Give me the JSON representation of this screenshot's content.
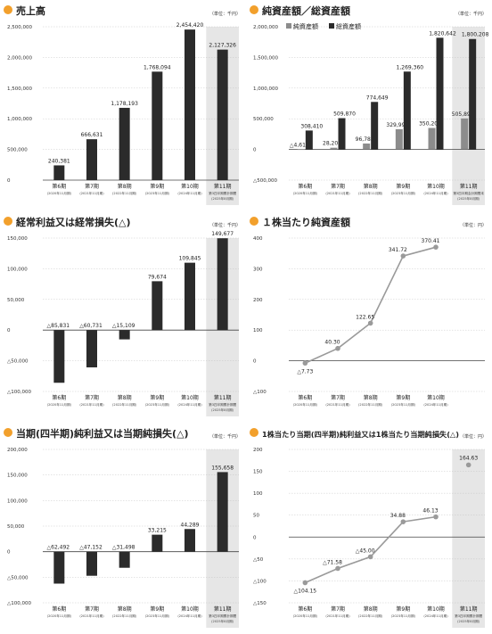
{
  "colors": {
    "bar_dark": "#2b2b2b",
    "bar_gray": "#8c8c8c",
    "line": "#9a9a9a",
    "highlight": "#e6e6e6",
    "title_dot": "#f2a02c",
    "grid": "#bdbdbd"
  },
  "chart_data": [
    {
      "id": "sales",
      "type": "bar",
      "title": "売上高",
      "unit": "（単位：千円）",
      "categories": [
        "第6期",
        "第7期",
        "第8期",
        "第9期",
        "第10期",
        "第11期"
      ],
      "category_notes": [
        "(2020年11月期)",
        "(2021年11月期)",
        "(2022年11月期)",
        "(2023年11月期)",
        "(2024年11月期)",
        "第3四半期累計期間"
      ],
      "category_notes2": [
        "",
        "",
        "",
        "",
        "",
        "(2025年8月期)"
      ],
      "series": [
        {
          "values": [
            240381,
            666631,
            1178193,
            1768094,
            2454420,
            2127326
          ]
        }
      ],
      "value_labels": [
        "240,381",
        "666,631",
        "1,178,193",
        "1,768,094",
        "2,454,420",
        "2,127,326"
      ],
      "ylim": [
        0,
        2500000
      ],
      "yticks": [
        0,
        500000,
        1000000,
        1500000,
        2000000,
        2500000
      ],
      "ytick_labels": [
        "0",
        "500,000",
        "1,000,000",
        "1,500,000",
        "2,000,000",
        "2,500,000"
      ],
      "highlight_last": true
    },
    {
      "id": "assets",
      "type": "bar",
      "title": "純資産額／総資産額",
      "unit": "（単位：千円）",
      "categories": [
        "第6期",
        "第7期",
        "第8期",
        "第9期",
        "第10期",
        "第11期"
      ],
      "category_notes": [
        "(2020年11月期)",
        "(2021年11月期)",
        "(2022年11月期)",
        "(2023年11月期)",
        "(2024年11月期)",
        "第3四半期会計期間末"
      ],
      "category_notes2": [
        "",
        "",
        "",
        "",
        "",
        "(2025年8月期)"
      ],
      "series": [
        {
          "name": "純資産額",
          "values": [
            -4618,
            28208,
            96783,
            329995,
            350204,
            505892
          ],
          "labels": [
            "△4,618",
            "28,208",
            "96,783",
            "329,995",
            "350,204",
            "505,892"
          ]
        },
        {
          "name": "総資産額",
          "values": [
            308410,
            509870,
            774649,
            1269360,
            1820642,
            1800208
          ],
          "labels": [
            "308,410",
            "509,870",
            "774,649",
            "1,269,360",
            "1,820,642",
            "1,800,208"
          ]
        }
      ],
      "ylim": [
        -500000,
        2000000
      ],
      "yticks": [
        -500000,
        0,
        500000,
        1000000,
        1500000,
        2000000
      ],
      "ytick_labels": [
        "△500,000",
        "0",
        "500,000",
        "1,000,000",
        "1,500,000",
        "2,000,000"
      ],
      "highlight_last": true,
      "legend": "top-left"
    },
    {
      "id": "ordinary",
      "type": "bar",
      "title": "経常利益又は経常損失(△)",
      "unit": "（単位：千円）",
      "categories": [
        "第6期",
        "第7期",
        "第8期",
        "第9期",
        "第10期",
        "第11期"
      ],
      "category_notes": [
        "(2020年11月期)",
        "(2021年11月期)",
        "(2022年11月期)",
        "(2023年11月期)",
        "(2024年11月期)",
        "第3四半期累計期間"
      ],
      "category_notes2": [
        "",
        "",
        "",
        "",
        "",
        "(2025年8月期)"
      ],
      "series": [
        {
          "values": [
            -85831,
            -60731,
            -15109,
            79674,
            109845,
            149677
          ]
        }
      ],
      "value_labels": [
        "△85,831",
        "△60,731",
        "△15,109",
        "79,674",
        "109,845",
        "149,677"
      ],
      "ylim": [
        -100000,
        150000
      ],
      "yticks": [
        -100000,
        -50000,
        0,
        50000,
        100000,
        150000
      ],
      "ytick_labels": [
        "△100,000",
        "△50,000",
        "0",
        "50,000",
        "100,000",
        "150,000"
      ],
      "highlight_last": true
    },
    {
      "id": "bps",
      "type": "line",
      "title": "１株当たり純資産額",
      "unit": "（単位：円）",
      "categories": [
        "第6期",
        "第7期",
        "第8期",
        "第9期",
        "第10期"
      ],
      "category_notes": [
        "(2020年11月期)",
        "(2021年11月期)",
        "(2022年11月期)",
        "(2023年11月期)",
        "(2024年11月期)"
      ],
      "category_notes2": [
        "",
        "",
        "",
        "",
        ""
      ],
      "series": [
        {
          "values": [
            -7.73,
            40.3,
            122.65,
            341.72,
            370.41
          ]
        }
      ],
      "value_labels": [
        "△7.73",
        "40.30",
        "122.65",
        "341.72",
        "370.41"
      ],
      "ylim": [
        -100,
        400
      ],
      "yticks": [
        -100,
        0,
        100,
        200,
        300,
        400
      ],
      "ytick_labels": [
        "△100",
        "0",
        "100",
        "200",
        "300",
        "400"
      ],
      "highlight_last": false
    },
    {
      "id": "net",
      "type": "bar",
      "title": "当期(四半期)純利益又は当期純損失(△)",
      "unit": "（単位：千円）",
      "categories": [
        "第6期",
        "第7期",
        "第8期",
        "第9期",
        "第10期",
        "第11期"
      ],
      "category_notes": [
        "(2020年11月期)",
        "(2021年11月期)",
        "(2022年11月期)",
        "(2023年11月期)",
        "(2024年11月期)",
        "第3四半期累計期間"
      ],
      "category_notes2": [
        "",
        "",
        "",
        "",
        "",
        "(2025年8月期)"
      ],
      "series": [
        {
          "values": [
            -62492,
            -47152,
            -31498,
            33215,
            44289,
            155658
          ]
        }
      ],
      "value_labels": [
        "△62,492",
        "△47,152",
        "△31,498",
        "33,215",
        "44,289",
        "155,658"
      ],
      "ylim": [
        -100000,
        200000
      ],
      "yticks": [
        -100000,
        -50000,
        0,
        50000,
        100000,
        150000,
        200000
      ],
      "ytick_labels": [
        "△100,000",
        "△50,000",
        "0",
        "50,000",
        "100,000",
        "150,000",
        "200,000"
      ],
      "highlight_last": true
    },
    {
      "id": "eps",
      "type": "line",
      "title": "1株当たり当期(四半期)純利益又は1株当たり当期純損失(△)",
      "unit": "（単位：円）",
      "categories": [
        "第6期",
        "第7期",
        "第8期",
        "第9期",
        "第10期",
        "第11期"
      ],
      "category_notes": [
        "(2020年11月期)",
        "(2021年11月期)",
        "(2022年11月期)",
        "(2023年11月期)",
        "(2024年11月期)",
        "第3四半期累計期間"
      ],
      "category_notes2": [
        "",
        "",
        "",
        "",
        "",
        "(2025年8月期)"
      ],
      "series": [
        {
          "values": [
            -104.15,
            -71.58,
            -45.0,
            34.88,
            46.13,
            164.63
          ]
        }
      ],
      "value_labels": [
        "△104.15",
        "△71.58",
        "△45.00",
        "34.88",
        "46.13",
        "164.63"
      ],
      "ylim": [
        -150,
        200
      ],
      "yticks": [
        -150,
        -100,
        -50,
        0,
        50,
        100,
        150,
        200
      ],
      "ytick_labels": [
        "△150",
        "△100",
        "△50",
        "0",
        "50",
        "100",
        "150",
        "200"
      ],
      "highlight_last": true,
      "last_point_standalone": true
    }
  ]
}
